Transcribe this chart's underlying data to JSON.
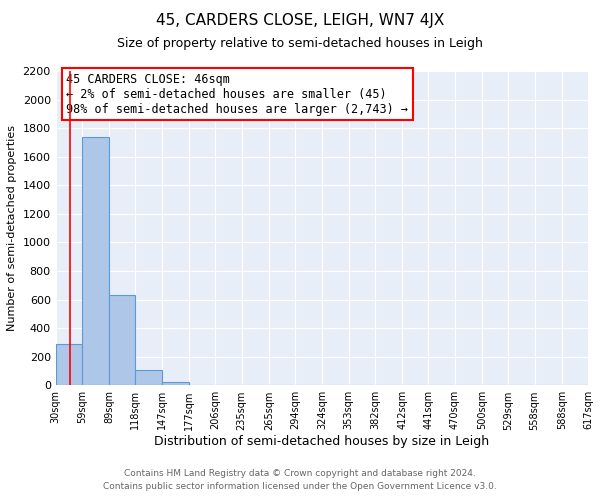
{
  "title": "45, CARDERS CLOSE, LEIGH, WN7 4JX",
  "subtitle": "Size of property relative to semi-detached houses in Leigh",
  "xlabel": "Distribution of semi-detached houses by size in Leigh",
  "ylabel": "Number of semi-detached properties",
  "bar_edges": [
    30,
    59,
    89,
    118,
    147,
    177,
    206,
    235,
    265,
    294,
    324,
    353,
    382,
    412,
    441,
    470,
    500,
    529,
    558,
    588,
    617
  ],
  "bar_heights": [
    290,
    1740,
    630,
    105,
    20,
    0,
    0,
    0,
    0,
    0,
    0,
    0,
    0,
    0,
    0,
    0,
    0,
    0,
    0,
    0
  ],
  "bar_color": "#aec6e8",
  "bar_edge_color": "#5b9bd5",
  "red_line_x": 46,
  "annotation_box_text": "45 CARDERS CLOSE: 46sqm\n← 2% of semi-detached houses are smaller (45)\n98% of semi-detached houses are larger (2,743) →",
  "ylim": [
    0,
    2200
  ],
  "yticks": [
    0,
    200,
    400,
    600,
    800,
    1000,
    1200,
    1400,
    1600,
    1800,
    2000,
    2200
  ],
  "footer_line1": "Contains HM Land Registry data © Crown copyright and database right 2024.",
  "footer_line2": "Contains public sector information licensed under the Open Government Licence v3.0.",
  "bg_color": "#e8eef8",
  "grid_color": "#ffffff",
  "fig_bg_color": "#ffffff",
  "title_fontsize": 11,
  "subtitle_fontsize": 9,
  "ylabel_fontsize": 8,
  "xlabel_fontsize": 9,
  "tick_fontsize": 8,
  "ann_fontsize": 8.5,
  "footer_fontsize": 6.5
}
